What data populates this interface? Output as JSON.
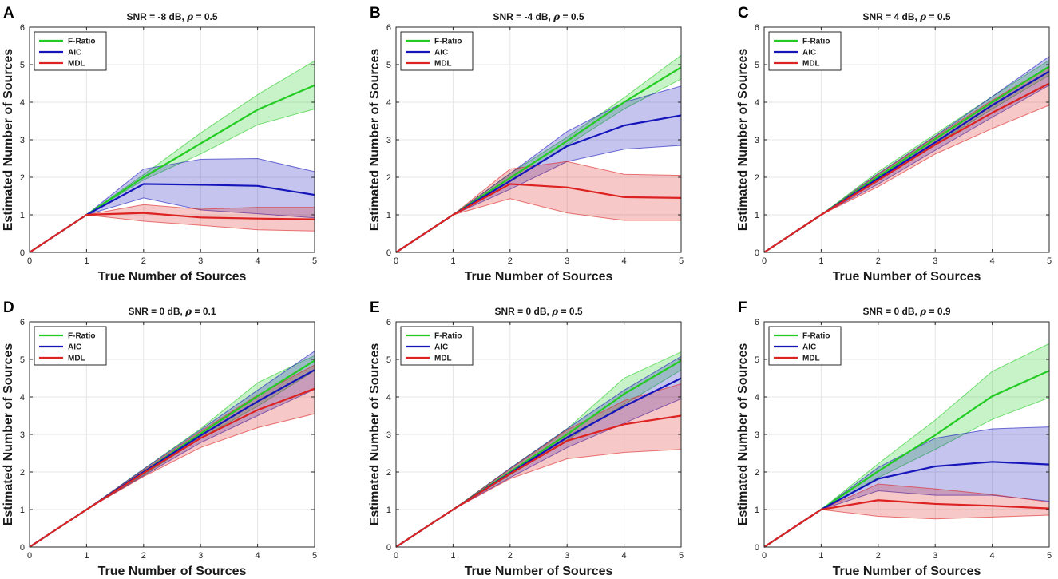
{
  "chart_data": [
    {
      "panel": "A",
      "type": "line",
      "title_prefix": "SNR = -8 dB, ",
      "rho_symbol": "ρ",
      "title_suffix": " = 0.5",
      "xlabel": "True Number of Sources",
      "ylabel": "Estimated Number of Sources",
      "x": [
        0,
        1,
        2,
        3,
        4,
        5
      ],
      "xlim": [
        0,
        5
      ],
      "ylim": [
        0,
        6
      ],
      "xticks": [
        "0",
        "1",
        "2",
        "3",
        "4",
        "5"
      ],
      "yticks": [
        "0",
        "1",
        "2",
        "3",
        "4",
        "5",
        "6"
      ],
      "legend_position": "top-left",
      "grid": true,
      "series": [
        {
          "name": "F-Ratio",
          "color": "#22cc22",
          "values": [
            0,
            1,
            2.0,
            2.9,
            3.8,
            4.45
          ],
          "lower": [
            0,
            1,
            1.93,
            2.62,
            3.4,
            3.82
          ],
          "upper": [
            0,
            1,
            2.07,
            3.18,
            4.2,
            5.1
          ]
        },
        {
          "name": "AIC",
          "color": "#1515bb",
          "values": [
            0,
            1,
            1.82,
            1.8,
            1.77,
            1.53
          ],
          "lower": [
            0,
            1,
            1.45,
            1.13,
            1.03,
            0.92
          ],
          "upper": [
            0,
            1,
            2.22,
            2.48,
            2.5,
            2.15
          ]
        },
        {
          "name": "MDL",
          "color": "#dd2222",
          "values": [
            0,
            1,
            1.05,
            0.93,
            0.9,
            0.88
          ],
          "lower": [
            0,
            1,
            0.83,
            0.72,
            0.6,
            0.57
          ],
          "upper": [
            0,
            1,
            1.27,
            1.15,
            1.2,
            1.2
          ]
        }
      ]
    },
    {
      "panel": "B",
      "type": "line",
      "title_prefix": "SNR = -4 dB, ",
      "rho_symbol": "ρ",
      "title_suffix": " = 0.5",
      "xlabel": "True Number of Sources",
      "ylabel": "Estimated Number of Sources",
      "x": [
        0,
        1,
        2,
        3,
        4,
        5
      ],
      "xlim": [
        0,
        5
      ],
      "ylim": [
        0,
        6
      ],
      "xticks": [
        "0",
        "1",
        "2",
        "3",
        "4",
        "5"
      ],
      "yticks": [
        "0",
        "1",
        "2",
        "3",
        "4",
        "5",
        "6"
      ],
      "legend_position": "top-left",
      "grid": true,
      "series": [
        {
          "name": "F-Ratio",
          "color": "#22cc22",
          "values": [
            0,
            1,
            1.98,
            2.97,
            4.0,
            4.93
          ],
          "lower": [
            0,
            1,
            1.88,
            2.85,
            3.82,
            4.62
          ],
          "upper": [
            0,
            1,
            2.1,
            3.07,
            4.12,
            5.25
          ]
        },
        {
          "name": "AIC",
          "color": "#1515bb",
          "values": [
            0,
            1,
            1.9,
            2.83,
            3.38,
            3.65
          ],
          "lower": [
            0,
            1,
            1.68,
            2.42,
            2.75,
            2.85
          ],
          "upper": [
            0,
            1,
            2.1,
            3.22,
            4.0,
            4.43
          ]
        },
        {
          "name": "MDL",
          "color": "#dd2222",
          "values": [
            0,
            1,
            1.82,
            1.73,
            1.47,
            1.45
          ],
          "lower": [
            0,
            1,
            1.43,
            1.05,
            0.85,
            0.85
          ],
          "upper": [
            0,
            1,
            2.22,
            2.42,
            2.08,
            2.05
          ]
        }
      ]
    },
    {
      "panel": "C",
      "type": "line",
      "title_prefix": "SNR = 4 dB, ",
      "rho_symbol": "ρ",
      "title_suffix": " = 0.5",
      "xlabel": "True Number of Sources",
      "ylabel": "Estimated Number of Sources",
      "x": [
        0,
        1,
        2,
        3,
        4,
        5
      ],
      "xlim": [
        0,
        5
      ],
      "ylim": [
        0,
        6
      ],
      "xticks": [
        "0",
        "1",
        "2",
        "3",
        "4",
        "5"
      ],
      "yticks": [
        "0",
        "1",
        "2",
        "3",
        "4",
        "5",
        "6"
      ],
      "legend_position": "top-left",
      "grid": true,
      "series": [
        {
          "name": "F-Ratio",
          "color": "#22cc22",
          "values": [
            0,
            1,
            2.02,
            3.02,
            4.0,
            4.95
          ],
          "lower": [
            0,
            1,
            1.9,
            2.88,
            3.82,
            4.72
          ],
          "upper": [
            0,
            1,
            2.15,
            3.15,
            4.15,
            5.12
          ]
        },
        {
          "name": "AIC",
          "color": "#1515bb",
          "values": [
            0,
            1,
            1.97,
            2.93,
            3.92,
            4.82
          ],
          "lower": [
            0,
            1,
            1.82,
            2.72,
            3.6,
            4.45
          ],
          "upper": [
            0,
            1,
            2.1,
            3.1,
            4.15,
            5.22
          ]
        },
        {
          "name": "MDL",
          "color": "#dd2222",
          "values": [
            0,
            1,
            1.92,
            2.87,
            3.72,
            4.5
          ],
          "lower": [
            0,
            1,
            1.75,
            2.62,
            3.3,
            3.92
          ],
          "upper": [
            0,
            1,
            2.08,
            3.08,
            4.05,
            4.95
          ]
        }
      ]
    },
    {
      "panel": "D",
      "type": "line",
      "title_prefix": "SNR = 0 dB, ",
      "rho_symbol": "ρ",
      "title_suffix": " = 0.1",
      "xlabel": "True Number of Sources",
      "ylabel": "Estimated Number of Sources",
      "x": [
        0,
        1,
        2,
        3,
        4,
        5
      ],
      "xlim": [
        0,
        5
      ],
      "ylim": [
        0,
        6
      ],
      "xticks": [
        "0",
        "1",
        "2",
        "3",
        "4",
        "5"
      ],
      "yticks": [
        "0",
        "1",
        "2",
        "3",
        "4",
        "5",
        "6"
      ],
      "legend_position": "top-left",
      "grid": true,
      "series": [
        {
          "name": "F-Ratio",
          "color": "#22cc22",
          "values": [
            0,
            1,
            2.0,
            3.02,
            4.02,
            4.97
          ],
          "lower": [
            0,
            1,
            1.92,
            2.9,
            3.75,
            4.7
          ],
          "upper": [
            0,
            1,
            2.08,
            3.15,
            4.38,
            5.1
          ]
        },
        {
          "name": "AIC",
          "color": "#1515bb",
          "values": [
            0,
            1,
            2.0,
            2.97,
            3.88,
            4.72
          ],
          "lower": [
            0,
            1,
            1.9,
            2.78,
            3.5,
            4.2
          ],
          "upper": [
            0,
            1,
            2.08,
            3.12,
            4.18,
            5.22
          ]
        },
        {
          "name": "MDL",
          "color": "#dd2222",
          "values": [
            0,
            1,
            1.97,
            2.9,
            3.65,
            4.22
          ],
          "lower": [
            0,
            1,
            1.88,
            2.65,
            3.18,
            3.55
          ],
          "upper": [
            0,
            1,
            2.05,
            3.08,
            4.05,
            4.85
          ]
        }
      ]
    },
    {
      "panel": "E",
      "type": "line",
      "title_prefix": "SNR = 0 dB, ",
      "rho_symbol": "ρ",
      "title_suffix": " = 0.5",
      "xlabel": "True Number of Sources",
      "ylabel": "Estimated Number of Sources",
      "x": [
        0,
        1,
        2,
        3,
        4,
        5
      ],
      "xlim": [
        0,
        5
      ],
      "ylim": [
        0,
        6
      ],
      "xticks": [
        "0",
        "1",
        "2",
        "3",
        "4",
        "5"
      ],
      "yticks": [
        "0",
        "1",
        "2",
        "3",
        "4",
        "5",
        "6"
      ],
      "legend_position": "top-left",
      "grid": true,
      "series": [
        {
          "name": "F-Ratio",
          "color": "#22cc22",
          "values": [
            0,
            1,
            2.0,
            3.0,
            4.08,
            4.97
          ],
          "lower": [
            0,
            1,
            1.92,
            2.85,
            3.8,
            4.72
          ],
          "upper": [
            0,
            1,
            2.1,
            3.15,
            4.5,
            5.2
          ]
        },
        {
          "name": "AIC",
          "color": "#1515bb",
          "values": [
            0,
            1,
            1.97,
            2.92,
            3.75,
            4.5
          ],
          "lower": [
            0,
            1,
            1.85,
            2.65,
            3.3,
            3.95
          ],
          "upper": [
            0,
            1,
            2.1,
            3.15,
            4.18,
            5.08
          ]
        },
        {
          "name": "MDL",
          "color": "#dd2222",
          "values": [
            0,
            1,
            1.95,
            2.83,
            3.27,
            3.5
          ],
          "lower": [
            0,
            1,
            1.82,
            2.35,
            2.52,
            2.6
          ],
          "upper": [
            0,
            1,
            2.08,
            3.12,
            3.9,
            4.35
          ]
        }
      ]
    },
    {
      "panel": "F",
      "type": "line",
      "title_prefix": "SNR = 0 dB, ",
      "rho_symbol": "ρ",
      "title_suffix": " = 0.9",
      "xlabel": "True Number of Sources",
      "ylabel": "Estimated Number of Sources",
      "x": [
        0,
        1,
        2,
        3,
        4,
        5
      ],
      "xlim": [
        0,
        5
      ],
      "ylim": [
        0,
        6
      ],
      "xticks": [
        "0",
        "1",
        "2",
        "3",
        "4",
        "5"
      ],
      "yticks": [
        "0",
        "1",
        "2",
        "3",
        "4",
        "5",
        "6"
      ],
      "legend_position": "top-left",
      "grid": true,
      "series": [
        {
          "name": "F-Ratio",
          "color": "#22cc22",
          "values": [
            0,
            1,
            2.02,
            2.98,
            4.02,
            4.7
          ],
          "lower": [
            0,
            1,
            1.85,
            2.6,
            3.4,
            3.98
          ],
          "upper": [
            0,
            1,
            2.22,
            3.38,
            4.68,
            5.42
          ]
        },
        {
          "name": "AIC",
          "color": "#1515bb",
          "values": [
            0,
            1,
            1.82,
            2.15,
            2.27,
            2.2
          ],
          "lower": [
            0,
            1,
            1.5,
            1.38,
            1.38,
            1.22
          ],
          "upper": [
            0,
            1,
            2.12,
            2.9,
            3.15,
            3.2
          ]
        },
        {
          "name": "MDL",
          "color": "#dd2222",
          "values": [
            0,
            1,
            1.25,
            1.15,
            1.1,
            1.03
          ],
          "lower": [
            0,
            1,
            0.82,
            0.75,
            0.8,
            0.85
          ],
          "upper": [
            0,
            1,
            1.68,
            1.55,
            1.4,
            1.2
          ]
        }
      ]
    }
  ]
}
